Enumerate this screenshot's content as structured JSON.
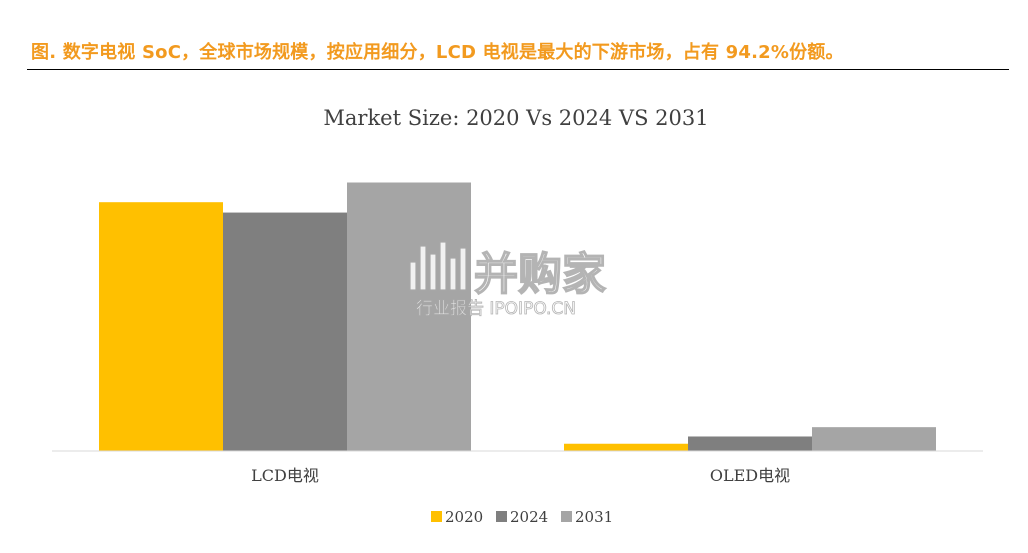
{
  "caption": "图.  数字电视 SoC，全球市场规模，按应用细分，LCD 电视是最大的下游市场，占有 94.2%份额。",
  "watermark": {
    "logo_text": "并购家",
    "sub_text": "行业报告 IPOIPO.CN"
  },
  "colors": {
    "caption": "#f29a1f",
    "series_2020": "#ffc000",
    "series_2024": "#7f7f7f",
    "series_2031": "#a5a5a5",
    "axis": "#d9d9d9"
  },
  "chart_data": {
    "type": "bar",
    "title": "Market Size: 2020 Vs 2024 VS 2031",
    "xlabel": "",
    "ylabel": "",
    "categories": [
      "LCD电视",
      "OLED电视"
    ],
    "series": [
      {
        "name": "2020",
        "values": [
          240,
          7
        ]
      },
      {
        "name": "2024",
        "values": [
          230,
          14
        ]
      },
      {
        "name": "2031",
        "values": [
          259,
          23
        ]
      }
    ],
    "ylim": [
      0,
      300
    ],
    "grid": false,
    "legend_position": "bottom"
  }
}
